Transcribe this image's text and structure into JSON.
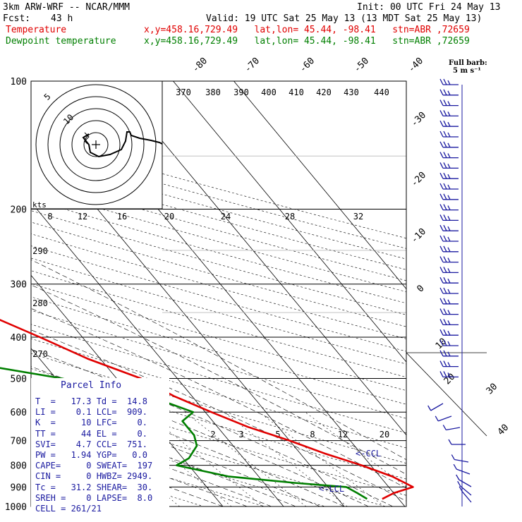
{
  "header": {
    "model": "3km ARW-WRF -- NCAR/MMM",
    "init": "Init: 00 UTC Fri 24 May 13",
    "fcst_label": "Fcst:",
    "fcst_value": "43 h",
    "valid": "Valid: 19 UTC Sat 25 May 13 (13 MDT Sat 25 May 13)",
    "temp_label": "Temperature",
    "temp_info": "x,y=458.16,729.49   lat,lon= 45.44, -98.41   stn=ABR ,72659",
    "dew_label": "Dewpoint temperature",
    "dew_info": "x,y=458.16,729.49   lat,lon= 45.44, -98.41   stn=ABR ,72659"
  },
  "colors": {
    "temperature": "#e00000",
    "dewpoint": "#007f00",
    "wind": "#1a1aa0",
    "hodo": "#000000"
  },
  "parcel": {
    "title": "Parcel Info",
    "rows": [
      "T  =   17.3 Td =  14.8",
      "LI =    0.1 LCL=  909.",
      "K  =     10 LFC=    0.",
      "TT =     44 EL =    0.",
      "SVI=    4.7 CCL=  751.",
      "PW =   1.94 YGP=   0.0",
      "CAPE=     0 SWEAT=  197",
      "CIN =     0 HWBZ= 2949.",
      "Tc =   31.2 SHEAR=  30.",
      "SREH =    0 LAPSE=  8.0",
      "CELL = 261/21"
    ]
  },
  "wind_legend": {
    "title": "Full barb:",
    "value": "5 m s⁻¹"
  },
  "hodograph": {
    "units": "kts",
    "ring_labels": [
      "5",
      "10"
    ],
    "speed_labels": [
      "8",
      "12",
      "16",
      "20",
      "24",
      "28",
      "32"
    ]
  },
  "annotations": {
    "ccl": "<-CCL",
    "lcl": "<-LCL"
  },
  "chart_data": {
    "type": "line",
    "y_axis": "pressure (hPa), log scale",
    "ylim": [
      1000,
      100
    ],
    "pressure_labels": [
      100,
      200,
      300,
      400,
      500,
      600,
      700,
      800,
      900,
      1000
    ],
    "isotherm_labels": [
      -80,
      -70,
      -60,
      -50,
      -40,
      -30,
      -20,
      -10,
      0,
      10,
      20,
      30,
      40
    ],
    "theta_labels": [
      370,
      380,
      390,
      400,
      410,
      420,
      430,
      440,
      290,
      280,
      270
    ],
    "mixing_ratio_labels": [
      2,
      3,
      5,
      8,
      12,
      20
    ],
    "series": [
      {
        "name": "Temperature",
        "points": [
          [
            960,
            17.3
          ],
          [
            930,
            20
          ],
          [
            900,
            24
          ],
          [
            850,
            22
          ],
          [
            800,
            18.5
          ],
          [
            750,
            14
          ],
          [
            700,
            10
          ],
          [
            650,
            5
          ],
          [
            600,
            1
          ],
          [
            550,
            -3
          ],
          [
            500,
            -6
          ],
          [
            450,
            -12
          ],
          [
            400,
            -17
          ],
          [
            350,
            -23
          ],
          [
            300,
            -30
          ],
          [
            250,
            -40
          ],
          [
            200,
            -50
          ],
          [
            180,
            -52
          ],
          [
            160,
            -53
          ],
          [
            140,
            -53
          ],
          [
            120,
            -55
          ],
          [
            100,
            -58
          ]
        ]
      },
      {
        "name": "Dewpoint temperature",
        "points": [
          [
            960,
            14.8
          ],
          [
            930,
            14
          ],
          [
            900,
            13
          ],
          [
            880,
            5
          ],
          [
            850,
            -5
          ],
          [
            800,
            -12
          ],
          [
            770,
            -9
          ],
          [
            720,
            -6
          ],
          [
            680,
            -5
          ],
          [
            630,
            -5
          ],
          [
            600,
            -2
          ],
          [
            560,
            -6
          ],
          [
            530,
            -13
          ],
          [
            500,
            -19
          ],
          [
            460,
            -32
          ],
          [
            420,
            -38
          ],
          [
            380,
            -44
          ],
          [
            350,
            -47
          ],
          [
            300,
            -50
          ],
          [
            250,
            -57
          ],
          [
            200,
            -68
          ],
          [
            150,
            -78
          ],
          [
            120,
            -84
          ],
          [
            100,
            -88
          ]
        ]
      }
    ]
  }
}
